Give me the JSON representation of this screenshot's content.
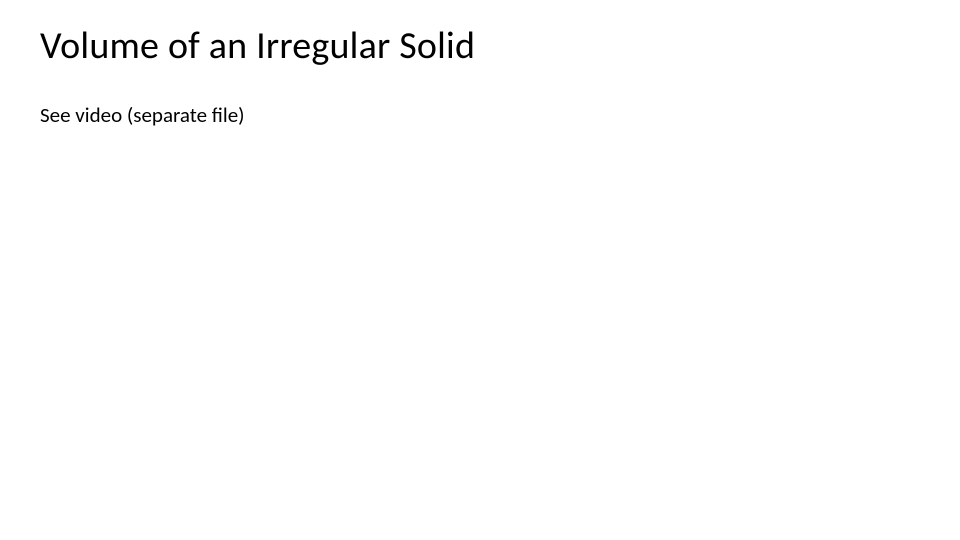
{
  "slide": {
    "title": "Volume of an Irregular Solid",
    "body": "See video (separate file)",
    "background_color": "#ffffff",
    "text_color": "#000000",
    "title_fontsize": 38,
    "body_fontsize": 21,
    "font_family": "Calibri"
  }
}
